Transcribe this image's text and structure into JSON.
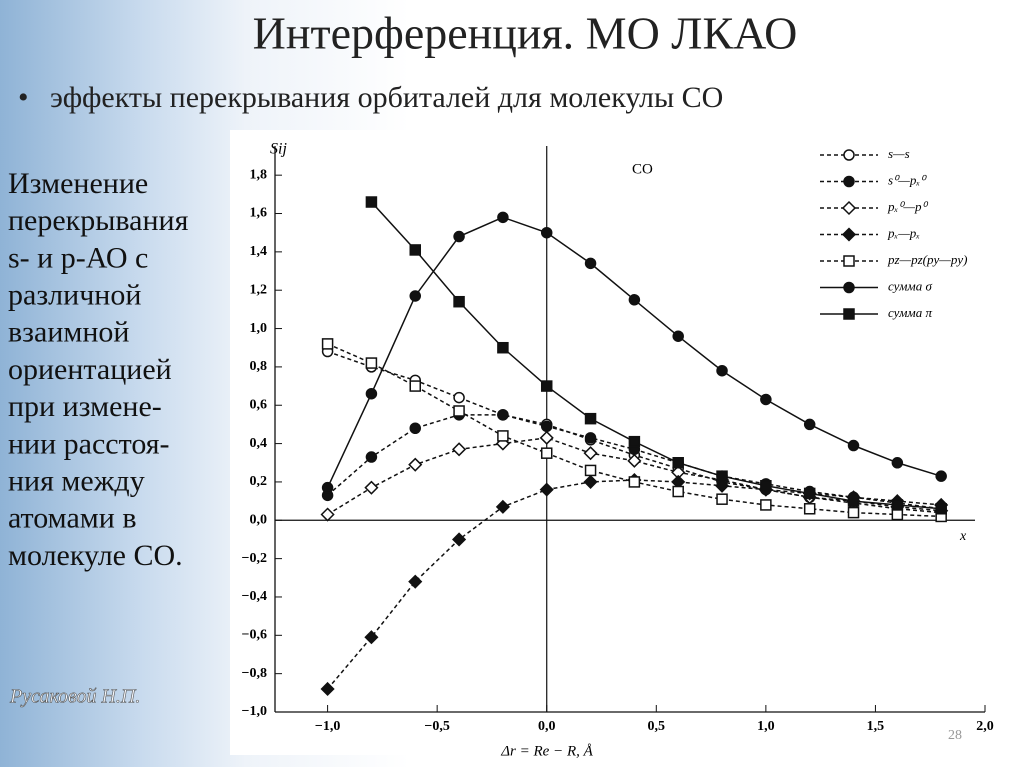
{
  "slide": {
    "title": "Интерференция. МО ЛКАО",
    "bullet": "эффекты перекрывания орбиталей для молекулы CO",
    "side_text": [
      "Изменение",
      "перекрывания",
      "s- и p-АО с",
      "различной",
      "взаимной",
      "ориентацией",
      "при измене-",
      "нии расстоя-",
      "ния между",
      "атомами в",
      "молекуле CO."
    ],
    "signature": "Русаковой Н.П.",
    "page_number": "28"
  },
  "chart_data": {
    "type": "line",
    "title": "CO",
    "ylabel": "Sij",
    "xlabel": "Δr = Re − R, Å",
    "x_axis_end": "x",
    "x": [
      -1.0,
      -0.8,
      -0.6,
      -0.4,
      -0.2,
      0,
      0.2,
      0.4,
      0.6,
      0.8,
      1.0,
      1.2,
      1.4,
      1.6,
      1.8
    ],
    "xlim": [
      -1.24,
      2.0
    ],
    "ylim": [
      -1.0,
      1.9
    ],
    "xticks": [
      {
        "value": -1,
        "label": "−1,0"
      },
      {
        "value": -0.5,
        "label": "−0,5"
      },
      {
        "value": 0,
        "label": "0,0"
      },
      {
        "value": 0.5,
        "label": "0,5"
      },
      {
        "value": 1,
        "label": "1,0"
      },
      {
        "value": 1.5,
        "label": "1,5"
      },
      {
        "value": 2,
        "label": "2,0"
      }
    ],
    "yticks": [
      {
        "value": -1,
        "label": "−1,0"
      },
      {
        "value": -0.8,
        "label": "−0,8"
      },
      {
        "value": -0.6,
        "label": "−0,6"
      },
      {
        "value": -0.4,
        "label": "−0,4"
      },
      {
        "value": -0.2,
        "label": "−0,2"
      },
      {
        "value": 0,
        "label": "0,0"
      },
      {
        "value": 0.2,
        "label": "0,2"
      },
      {
        "value": 0.4,
        "label": "0,4"
      },
      {
        "value": 0.6,
        "label": "0,6"
      },
      {
        "value": 0.8,
        "label": "0,8"
      },
      {
        "value": 1,
        "label": "1,0"
      },
      {
        "value": 1.2,
        "label": "1,2"
      },
      {
        "value": 1.4,
        "label": "1,4"
      },
      {
        "value": 1.6,
        "label": "1,6"
      },
      {
        "value": 1.8,
        "label": "1,8"
      }
    ],
    "series": [
      {
        "name": "s—s",
        "color": "#111111",
        "marker": "circle-open",
        "dashed": true,
        "values": [
          0.88,
          0.8,
          0.73,
          0.64,
          0.55,
          0.5,
          0.42,
          0.34,
          0.27,
          0.2,
          0.16,
          0.12,
          0.09,
          0.06,
          0.04
        ]
      },
      {
        "name": "s⁰—pₓ⁰",
        "color": "#111111",
        "marker": "circle-filled",
        "dashed": true,
        "values": [
          0.13,
          0.33,
          0.48,
          0.55,
          0.55,
          0.49,
          0.43,
          0.37,
          0.3,
          0.23,
          0.19,
          0.15,
          0.12,
          0.09,
          0.06
        ]
      },
      {
        "name": "pₓ⁰—p⁰",
        "color": "#111111",
        "marker": "diamond-open",
        "dashed": true,
        "values": [
          0.03,
          0.17,
          0.29,
          0.37,
          0.4,
          0.43,
          0.35,
          0.31,
          0.25,
          0.21,
          0.16,
          0.12,
          0.1,
          0.07,
          0.05
        ]
      },
      {
        "name": "pₓ—pₓ",
        "color": "#111111",
        "marker": "diamond-filled",
        "dashed": true,
        "values": [
          -0.88,
          -0.61,
          -0.32,
          -0.1,
          0.07,
          0.16,
          0.2,
          0.21,
          0.2,
          0.18,
          0.16,
          0.14,
          0.12,
          0.1,
          0.08
        ]
      },
      {
        "name": "pz—pz(py—py)",
        "color": "#111111",
        "marker": "square-open",
        "dashed": true,
        "values": [
          0.92,
          0.82,
          0.7,
          0.57,
          0.44,
          0.35,
          0.26,
          0.2,
          0.15,
          0.11,
          0.08,
          0.06,
          0.04,
          0.03,
          0.02
        ]
      },
      {
        "name": "сумма σ",
        "color": "#111111",
        "marker": "circle-filled",
        "dashed": false,
        "values": [
          0.17,
          0.66,
          1.17,
          1.48,
          1.58,
          1.5,
          1.34,
          1.15,
          0.96,
          0.78,
          0.63,
          0.5,
          0.39,
          0.3,
          0.23
        ]
      },
      {
        "name": "сумма π",
        "color": "#111111",
        "marker": "square-filled",
        "dashed": false,
        "values": [
          null,
          1.66,
          1.41,
          1.14,
          0.9,
          0.7,
          0.53,
          0.41,
          0.3,
          0.23,
          0.18,
          0.14,
          0.1,
          0.08,
          0.06
        ]
      }
    ]
  }
}
